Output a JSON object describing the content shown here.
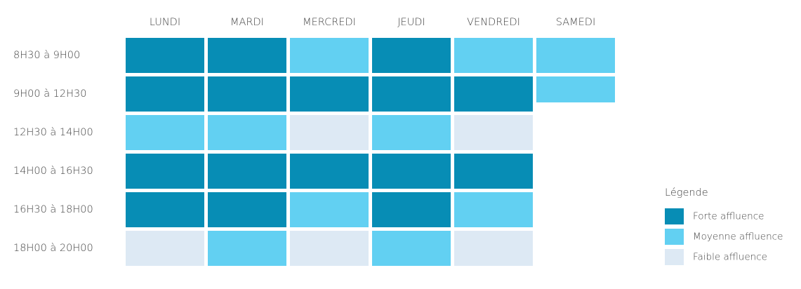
{
  "table": {
    "columns": [
      "LUNDI",
      "MARDI",
      "MERCREDI",
      "JEUDI",
      "VENDREDI",
      "SAMEDI"
    ],
    "rows": [
      "8H30 à 9H00",
      "9H00 à 12H30",
      "12H30 à 14H00",
      "14H00 à 16H30",
      "16H30 à 18H00",
      "18H00 à 20H00"
    ],
    "cells": [
      [
        0,
        0,
        1,
        0,
        1,
        1
      ],
      [
        0,
        0,
        0,
        0,
        0,
        1
      ],
      [
        1,
        1,
        2,
        1,
        2,
        null
      ],
      [
        0,
        0,
        0,
        0,
        0,
        null
      ],
      [
        0,
        0,
        1,
        0,
        1,
        null
      ],
      [
        2,
        1,
        2,
        1,
        2,
        null
      ]
    ]
  },
  "legend": {
    "title": "Légende",
    "items": [
      {
        "label": "Forte affluence",
        "color": "#078db5"
      },
      {
        "label": "Moyenne affluence",
        "color": "#62d0f2"
      },
      {
        "label": "Faible affluence",
        "color": "#dde9f4"
      }
    ]
  }
}
